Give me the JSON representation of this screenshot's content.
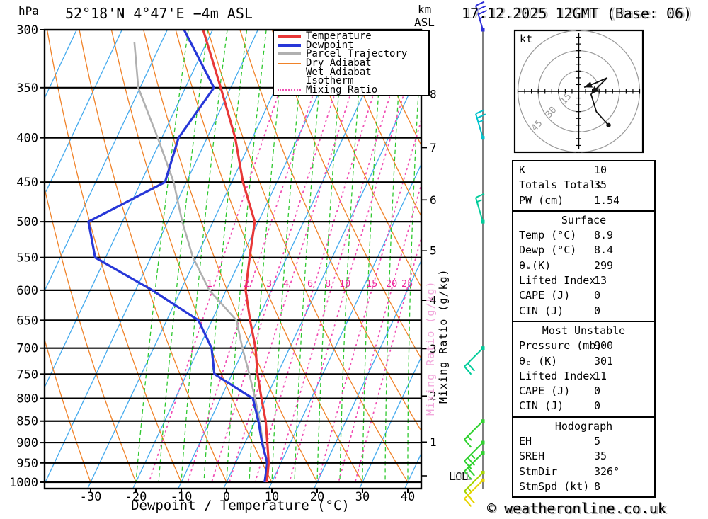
{
  "header": {
    "pressure_unit": "hPa",
    "title": "52°18'N 4°47'E −4m ASL",
    "km_unit": "km",
    "asl": "ASL",
    "datetime": "17.12.2025 12GMT (Base: 06)"
  },
  "axes": {
    "xlabel": "Dewpoint / Temperature (°C)",
    "pressure_ticks": [
      300,
      350,
      400,
      450,
      500,
      550,
      600,
      650,
      700,
      750,
      800,
      850,
      900,
      950,
      1000
    ],
    "temp_ticks": [
      -30,
      -20,
      -10,
      0,
      10,
      20,
      30,
      40
    ],
    "km_ticks": [
      8,
      7,
      6,
      5,
      4,
      3,
      2,
      1
    ],
    "lcl_label": "LCL",
    "mixing_axis_label": "Mixing Ratio (g/kg)"
  },
  "legend": [
    {
      "label": "Temperature",
      "color": "#e83737",
      "weight": 4,
      "dash": "solid"
    },
    {
      "label": "Dewpoint",
      "color": "#2737d8",
      "weight": 4,
      "dash": "solid"
    },
    {
      "label": "Parcel Trajectory",
      "color": "#b0b0b0",
      "weight": 4,
      "dash": "solid"
    },
    {
      "label": "Dry Adiabat",
      "color": "#f08228",
      "weight": 1.5,
      "dash": "solid"
    },
    {
      "label": "Wet Adiabat",
      "color": "#2fc82f",
      "weight": 1.5,
      "dash": "solid"
    },
    {
      "label": "Isotherm",
      "color": "#44aaee",
      "weight": 1.5,
      "dash": "solid"
    },
    {
      "label": "Mixing Ratio",
      "color": "#f050b4",
      "weight": 2,
      "dash": "dotted"
    }
  ],
  "chart_data": {
    "type": "line",
    "variant": "skew-t-log-p",
    "title": "52°18'N 4°47'E −4m ASL",
    "xlabel": "Dewpoint / Temperature (°C)",
    "ylabel": "hPa",
    "x_range": [
      -40,
      40
    ],
    "y_range_hpa": [
      1000,
      300
    ],
    "y_scale": "log",
    "isotherm_step_c": 10,
    "dry_adiabat_step_c": 10,
    "wet_adiabat_step_c": 5,
    "mixing_ratio_lines": [
      1,
      2,
      3,
      4,
      6,
      8,
      10,
      15,
      20,
      25
    ],
    "series": [
      {
        "name": "Temperature",
        "color": "#e83737",
        "width": 3.2,
        "points": [
          [
            1000,
            8.9
          ],
          [
            950,
            7.3
          ],
          [
            900,
            4.9
          ],
          [
            850,
            2.3
          ],
          [
            800,
            -1.0
          ],
          [
            750,
            -4.4
          ],
          [
            700,
            -7.5
          ],
          [
            650,
            -11.6
          ],
          [
            600,
            -15.7
          ],
          [
            550,
            -18.2
          ],
          [
            500,
            -20.8
          ],
          [
            450,
            -27.5
          ],
          [
            400,
            -33.8
          ],
          [
            350,
            -42.2
          ],
          [
            300,
            -52.1
          ]
        ]
      },
      {
        "name": "Dewpoint",
        "color": "#2737d8",
        "width": 3.2,
        "points": [
          [
            1000,
            8.4
          ],
          [
            950,
            7.0
          ],
          [
            900,
            3.7
          ],
          [
            850,
            0.7
          ],
          [
            800,
            -2.9
          ],
          [
            750,
            -13.9
          ],
          [
            700,
            -17.2
          ],
          [
            650,
            -23.0
          ],
          [
            600,
            -36.3
          ],
          [
            550,
            -52.3
          ],
          [
            500,
            -57.5
          ],
          [
            450,
            -44.7
          ],
          [
            400,
            -46.3
          ],
          [
            350,
            -43.7
          ],
          [
            300,
            -56.3
          ]
        ]
      },
      {
        "name": "Parcel Trajectory",
        "color": "#b0b0b0",
        "width": 2.6,
        "points": [
          [
            1000,
            8.9
          ],
          [
            950,
            6.9
          ],
          [
            900,
            3.9
          ],
          [
            850,
            1.0
          ],
          [
            800,
            -2.4
          ],
          [
            750,
            -6.2
          ],
          [
            700,
            -10.4
          ],
          [
            650,
            -14.6
          ],
          [
            600,
            -23.7
          ],
          [
            550,
            -30.7
          ],
          [
            500,
            -36.8
          ],
          [
            450,
            -42.8
          ],
          [
            400,
            -50.9
          ],
          [
            350,
            -60.4
          ],
          [
            310,
            -66.0
          ]
        ]
      }
    ]
  },
  "wind_barbs": [
    {
      "pressure": 300,
      "speed_kt": 35,
      "color": "#2d2dd8",
      "orient": "up"
    },
    {
      "pressure": 400,
      "speed_kt": 25,
      "color": "#00c3cc",
      "orient": "up"
    },
    {
      "pressure": 500,
      "speed_kt": 15,
      "color": "#00cc9a",
      "orient": "up"
    },
    {
      "pressure": 700,
      "speed_kt": 20,
      "color": "#00cc9a",
      "orient": "down"
    },
    {
      "pressure": 850,
      "speed_kt": 15,
      "color": "#2fd22f",
      "orient": "down"
    },
    {
      "pressure": 900,
      "speed_kt": 25,
      "color": "#2fd22f",
      "orient": "down"
    },
    {
      "pressure": 925,
      "speed_kt": 20,
      "color": "#2fd22f",
      "orient": "down"
    },
    {
      "pressure": 975,
      "speed_kt": 15,
      "color": "#a5d500",
      "orient": "down"
    },
    {
      "pressure": 995,
      "speed_kt": 20,
      "color": "#e8d400",
      "orient": "down"
    }
  ],
  "hodograph": {
    "unit": "kt",
    "rings_kt": [
      15,
      30,
      45
    ],
    "trace_segments": [
      {
        "points": [
          [
            21,
            10
          ],
          [
            12,
            6
          ],
          [
            4,
            3
          ]
        ],
        "arrow_end": true,
        "dot_end": false
      },
      {
        "points": [
          [
            21,
            10
          ],
          [
            9,
            -2
          ]
        ],
        "arrow_end": true,
        "dot_end": false
      },
      {
        "points": [
          [
            9,
            -2
          ],
          [
            13,
            -15
          ],
          [
            22,
            -25
          ]
        ],
        "arrow_end": false,
        "dot_end": true
      }
    ]
  },
  "stats_boxes": [
    {
      "header": "",
      "rows": [
        [
          "K",
          "10"
        ],
        [
          "Totals Totals",
          "35"
        ],
        [
          "PW (cm)",
          "1.54"
        ]
      ]
    },
    {
      "header": "Surface",
      "rows": [
        [
          "Temp (°C)",
          "8.9"
        ],
        [
          "Dewp (°C)",
          "8.4"
        ],
        [
          "θₑ(K)",
          "299"
        ],
        [
          "Lifted Index",
          "13"
        ],
        [
          "CAPE (J)",
          "0"
        ],
        [
          "CIN (J)",
          "0"
        ]
      ]
    },
    {
      "header": "Most Unstable",
      "rows": [
        [
          "Pressure (mb)",
          "900"
        ],
        [
          "θₑ (K)",
          "301"
        ],
        [
          "Lifted Index",
          "11"
        ],
        [
          "CAPE (J)",
          "0"
        ],
        [
          "CIN (J)",
          "0"
        ]
      ]
    },
    {
      "header": "Hodograph",
      "rows": [
        [
          "EH",
          "5"
        ],
        [
          "SREH",
          "35"
        ],
        [
          "StmDir",
          "326°"
        ],
        [
          "StmSpd (kt)",
          "8"
        ]
      ]
    }
  ],
  "footer": {
    "copyright": "© weatheronline.co.uk"
  }
}
